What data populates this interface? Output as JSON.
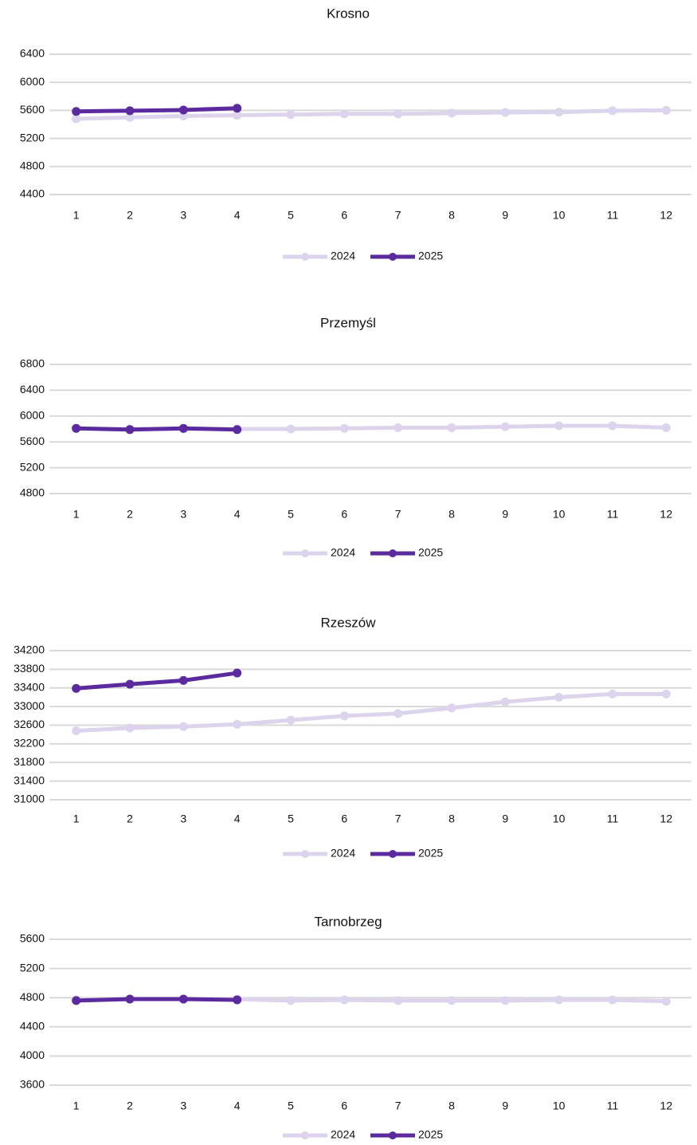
{
  "chart_data": [
    {
      "type": "line",
      "title": "Krosno",
      "categories": [
        "1",
        "2",
        "3",
        "4",
        "5",
        "6",
        "7",
        "8",
        "9",
        "10",
        "11",
        "12"
      ],
      "ylim": [
        4400,
        6400
      ],
      "yticks": [
        4400,
        4800,
        5200,
        5600,
        6000,
        6400
      ],
      "grid": true,
      "series": [
        {
          "name": "2024",
          "color": "#dcd3ec",
          "values": [
            5480,
            5500,
            5520,
            5530,
            5540,
            5550,
            5550,
            5560,
            5570,
            5575,
            5595,
            5600
          ]
        },
        {
          "name": "2025",
          "color": "#5b2a9e",
          "values": [
            5585,
            5595,
            5605,
            5630,
            null,
            null,
            null,
            null,
            null,
            null,
            null,
            null
          ]
        }
      ]
    },
    {
      "type": "line",
      "title": "Przemyśl",
      "categories": [
        "1",
        "2",
        "3",
        "4",
        "5",
        "6",
        "7",
        "8",
        "9",
        "10",
        "11",
        "12"
      ],
      "ylim": [
        4800,
        6800
      ],
      "yticks": [
        4800,
        5200,
        5600,
        6000,
        6400,
        6800
      ],
      "grid": true,
      "series": [
        {
          "name": "2024",
          "color": "#dcd3ec",
          "values": [
            5810,
            5800,
            5800,
            5800,
            5800,
            5810,
            5820,
            5820,
            5835,
            5850,
            5850,
            5820
          ]
        },
        {
          "name": "2025",
          "color": "#5b2a9e",
          "values": [
            5810,
            5790,
            5810,
            5790,
            null,
            null,
            null,
            null,
            null,
            null,
            null,
            null
          ]
        }
      ]
    },
    {
      "type": "line",
      "title": "Rzeszów",
      "categories": [
        "1",
        "2",
        "3",
        "4",
        "5",
        "6",
        "7",
        "8",
        "9",
        "10",
        "11",
        "12"
      ],
      "ylim": [
        31000,
        34200
      ],
      "yticks": [
        31000,
        31400,
        31800,
        32200,
        32600,
        33000,
        33400,
        33800,
        34200
      ],
      "grid": true,
      "series": [
        {
          "name": "2024",
          "color": "#dcd3ec",
          "values": [
            32480,
            32540,
            32570,
            32620,
            32710,
            32800,
            32850,
            32970,
            33100,
            33200,
            33270,
            33270
          ]
        },
        {
          "name": "2025",
          "color": "#5b2a9e",
          "values": [
            33390,
            33480,
            33560,
            33720,
            null,
            null,
            null,
            null,
            null,
            null,
            null,
            null
          ]
        }
      ]
    },
    {
      "type": "line",
      "title": "Tarnobrzeg",
      "categories": [
        "1",
        "2",
        "3",
        "4",
        "5",
        "6",
        "7",
        "8",
        "9",
        "10",
        "11",
        "12"
      ],
      "ylim": [
        3600,
        5600
      ],
      "yticks": [
        3600,
        4000,
        4400,
        4800,
        5200,
        5600
      ],
      "grid": true,
      "series": [
        {
          "name": "2024",
          "color": "#dcd3ec",
          "values": [
            4770,
            4780,
            4780,
            4780,
            4760,
            4770,
            4760,
            4760,
            4760,
            4770,
            4770,
            4750
          ]
        },
        {
          "name": "2025",
          "color": "#5b2a9e",
          "values": [
            4760,
            4780,
            4780,
            4770,
            null,
            null,
            null,
            null,
            null,
            null,
            null,
            null
          ]
        }
      ]
    }
  ]
}
